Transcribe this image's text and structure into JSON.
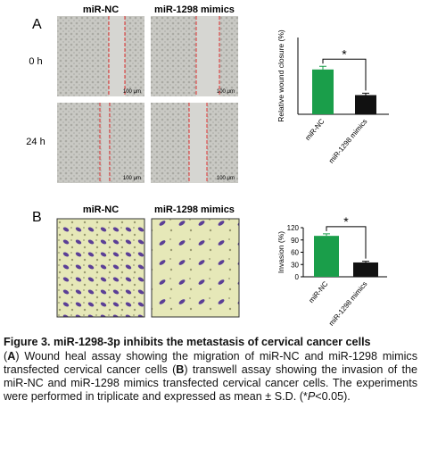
{
  "panel_a": {
    "label": "A",
    "columns": [
      "miR-NC",
      "miR-1298 mimics"
    ],
    "rows": [
      "0 h",
      "24 h"
    ],
    "scale_bar": "100 μm"
  },
  "panel_b": {
    "label": "B",
    "columns": [
      "miR-NC",
      "miR-1298 mimics"
    ]
  },
  "chart_data": [
    {
      "type": "bar",
      "y_label": "Relative wound closure (%)",
      "categories": [
        "miR-NC",
        "miR-1298 mimics"
      ],
      "values": [
        70,
        30
      ],
      "errors": [
        5,
        3
      ],
      "colors": [
        "#1a9e4a",
        "#111111"
      ],
      "ylim": [
        0,
        120
      ],
      "significance": "*"
    },
    {
      "type": "bar",
      "y_label": "Invasion (%)",
      "categories": [
        "miR-NC",
        "miR-1298 mimics"
      ],
      "values": [
        100,
        35
      ],
      "errors": [
        5,
        3
      ],
      "colors": [
        "#1a9e4a",
        "#111111"
      ],
      "ylim": [
        0,
        120
      ],
      "yticks": [
        0,
        30,
        60,
        90,
        120
      ],
      "significance": "*"
    }
  ],
  "caption": {
    "title": "Figure 3. miR-1298-3p inhibits the metastasis of cervical cancer cells",
    "body": [
      "(",
      "A",
      ") Wound heal assay showing the migration of miR-NC and miR-1298 mimics transfected cervical cancer cells (",
      "B",
      ") transwell assay showing the invasion of the miR-NC and miR-1298 mimics transfected cervical cancer cells. The experiments were performed in triplicate and expressed as mean ± S.D. (*",
      "P",
      "<0.05)."
    ]
  }
}
